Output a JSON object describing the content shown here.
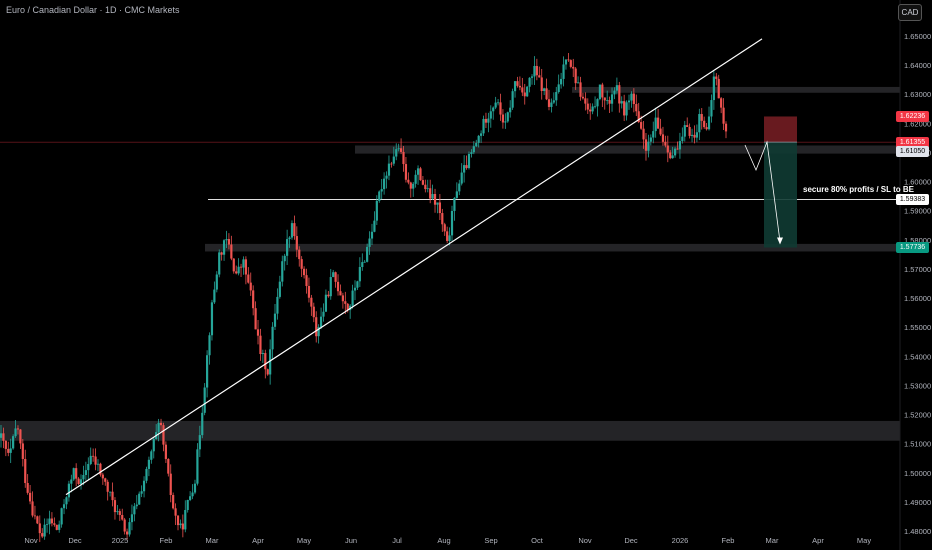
{
  "header": {
    "title": "Euro / Canadian Dollar · 1D · CMC Markets",
    "currency_button": "CAD"
  },
  "annotation": {
    "text": "secure 80% profits / SL to BE"
  },
  "colors": {
    "up": "#26a69a",
    "down": "#ef5350",
    "zone": "#2a2a2e",
    "trend": "#ffffff",
    "stop": "#7a1f24",
    "target": "#0f3b33"
  },
  "price_labels": [
    {
      "value": "1.62236",
      "color": "#f23645",
      "text": "#ffffff"
    },
    {
      "value": "1.61355",
      "color": "#f23645",
      "text": "#ffffff"
    },
    {
      "value": "1.61050",
      "color": "#e0e3eb",
      "text": "#000000"
    },
    {
      "value": "1.59383",
      "color": "#ffffff",
      "text": "#000000"
    },
    {
      "value": "1.57736",
      "color": "#089981",
      "text": "#ffffff"
    }
  ],
  "chart_data": {
    "type": "candlestick",
    "y_axis": {
      "ylim": [
        1.477,
        1.655
      ],
      "ticks": [
        "1.65000",
        "1.64000",
        "1.63000",
        "1.62000",
        "1.61000",
        "1.60000",
        "1.59000",
        "1.58000",
        "1.57000",
        "1.56000",
        "1.55000",
        "1.54000",
        "1.53000",
        "1.52000",
        "1.51000",
        "1.50000",
        "1.49000",
        "1.48000"
      ]
    },
    "x_axis": {
      "labels": [
        "Nov",
        "Dec",
        "2025",
        "Feb",
        "Mar",
        "Apr",
        "May",
        "Jun",
        "Jul",
        "Aug",
        "Sep",
        "Oct",
        "Nov",
        "Dec",
        "2026",
        "Feb",
        "Mar",
        "Apr",
        "May"
      ]
    },
    "series": [
      {
        "month": "Nov 2024",
        "path": [
          1.512,
          1.505,
          1.517,
          1.498,
          1.486,
          1.478,
          1.484
        ]
      },
      {
        "month": "Dec 2024",
        "path": [
          1.484,
          1.48,
          1.492,
          1.5,
          1.496,
          1.506,
          1.502
        ]
      },
      {
        "month": "Jan 2025",
        "path": [
          1.502,
          1.494,
          1.486,
          1.479,
          1.49,
          1.5
        ]
      },
      {
        "month": "Feb 2025",
        "path": [
          1.5,
          1.51,
          1.517,
          1.5,
          1.486,
          1.48,
          1.49,
          1.498
        ]
      },
      {
        "month": "Mar 2025",
        "path": [
          1.498,
          1.525,
          1.555,
          1.575,
          1.58,
          1.568,
          1.572
        ]
      },
      {
        "month": "Apr 2025",
        "path": [
          1.572,
          1.56,
          1.542,
          1.535,
          1.558,
          1.575,
          1.586
        ]
      },
      {
        "month": "May 2025",
        "path": [
          1.586,
          1.572,
          1.562,
          1.548,
          1.557,
          1.568,
          1.562
        ]
      },
      {
        "month": "Jun 2025",
        "path": [
          1.562,
          1.556,
          1.566,
          1.574,
          1.585,
          1.598,
          1.606
        ]
      },
      {
        "month": "Jul 2025",
        "path": [
          1.606,
          1.612,
          1.598,
          1.603,
          1.596,
          1.592
        ]
      },
      {
        "month": "Aug 2025",
        "path": [
          1.592,
          1.578,
          1.598,
          1.606,
          1.613,
          1.622
        ]
      },
      {
        "month": "Sep 2025",
        "path": [
          1.622,
          1.628,
          1.619,
          1.634,
          1.631,
          1.638
        ]
      },
      {
        "month": "Oct 2025",
        "path": [
          1.638,
          1.632,
          1.625,
          1.632,
          1.645,
          1.636,
          1.628
        ]
      },
      {
        "month": "Nov 2025",
        "path": [
          1.628,
          1.622,
          1.632,
          1.626,
          1.633,
          1.624,
          1.63
        ]
      },
      {
        "month": "Dec 2025",
        "path": [
          1.63,
          1.618,
          1.611,
          1.62,
          1.614,
          1.609,
          1.612
        ]
      },
      {
        "month": "Jan 2026",
        "path": [
          1.612,
          1.62,
          1.614,
          1.624,
          1.616,
          1.638,
          1.624,
          1.612
        ]
      }
    ],
    "horizontal_levels": [
      1.59383,
      1.6105,
      1.61355
    ],
    "zones": [
      {
        "from": 1.6096,
        "to": 1.6124
      },
      {
        "from": 1.6305,
        "to": 1.6325
      },
      {
        "from": 1.576,
        "to": 1.5786
      },
      {
        "from": 1.511,
        "to": 1.5178
      }
    ],
    "trendline": [
      [
        "Nov 2024",
        1.4925
      ],
      [
        "Feb 2026",
        1.649
      ]
    ],
    "short_position": {
      "entry": 1.61355,
      "stop": 1.62236,
      "target": 1.57736
    }
  }
}
